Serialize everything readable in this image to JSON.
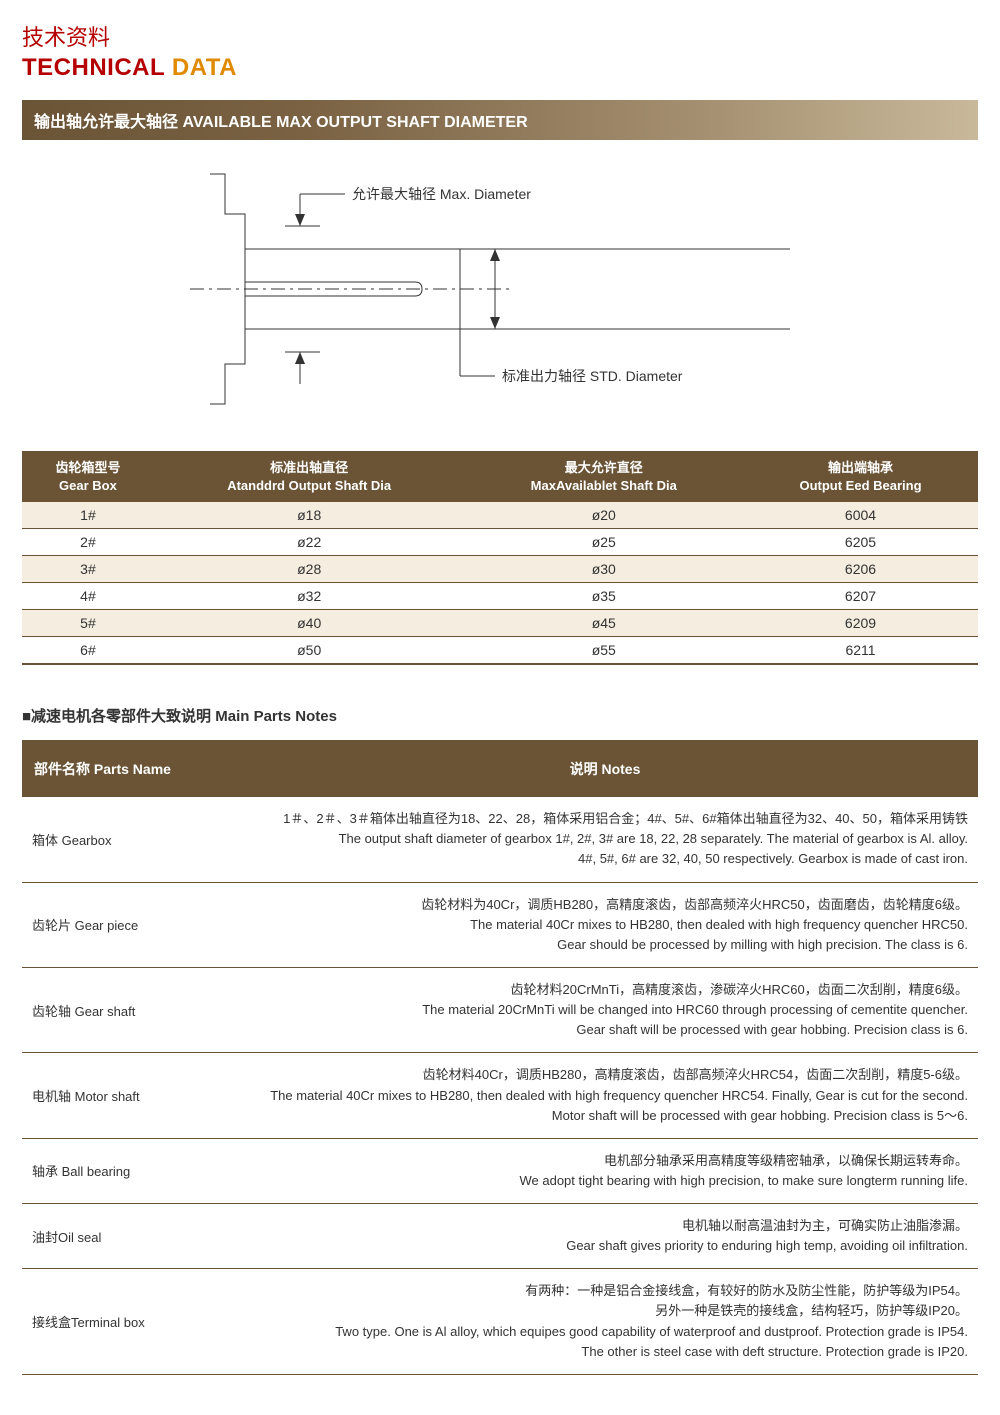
{
  "header": {
    "title_cn": "技术资料",
    "title_en_1": "TECHNICAL",
    "title_en_2": "DATA"
  },
  "section1": {
    "bar": "输出轴允许最大轴径 AVAILABLE MAX OUTPUT SHAFT DIAMETER",
    "diagram": {
      "label_max": "允许最大轴径 Max. Diameter",
      "label_std": "标准出力轴径 STD. Diameter",
      "stroke": "#333333"
    },
    "table": {
      "columns": [
        {
          "cn": "齿轮箱型号",
          "en": "Gear Box"
        },
        {
          "cn": "标准出轴直径",
          "en": "Atanddrd Output Shaft Dia"
        },
        {
          "cn": "最大允许直径",
          "en": "MaxAvailablet Shaft Dia"
        },
        {
          "cn": "输出端轴承",
          "en": "Output Eed Bearing"
        }
      ],
      "rows": [
        [
          "1#",
          "ø18",
          "ø20",
          "6004"
        ],
        [
          "2#",
          "ø22",
          "ø25",
          "6205"
        ],
        [
          "3#",
          "ø28",
          "ø30",
          "6206"
        ],
        [
          "4#",
          "ø32",
          "ø35",
          "6207"
        ],
        [
          "5#",
          "ø40",
          "ø45",
          "6209"
        ],
        [
          "6#",
          "ø50",
          "ø55",
          "6211"
        ]
      ],
      "header_bg": "#6b5436",
      "row_alt_bg": "#f4ede0",
      "border_color": "#6b5436"
    }
  },
  "section2": {
    "heading": "■减速电机各零部件大致说明  Main Parts Notes",
    "columns": {
      "name": "部件名称 Parts Name",
      "notes": "说明 Notes"
    },
    "rows": [
      {
        "name": "箱体 Gearbox",
        "lines": [
          "1＃、2＃、3＃箱体出轴直径为18、22、28，箱体采用铝合金；4#、5#、6#箱体出轴直径为32、40、50，箱体采用铸铁",
          "The output shaft diameter of gearbox 1#, 2#, 3# are 18, 22, 28 separately. The material of gearbox is Al. alloy.",
          "4#, 5#, 6# are 32, 40, 50 respectively. Gearbox is made of cast iron."
        ]
      },
      {
        "name": "齿轮片 Gear piece",
        "lines": [
          "齿轮材料为40Cr，调质HB280，高精度滚齿，齿部高频淬火HRC50，齿面磨齿，齿轮精度6级。",
          "The material 40Cr mixes to HB280, then dealed with high frequency quencher HRC50.",
          "Gear should be processed by milling with high precision. The class is 6."
        ]
      },
      {
        "name": "齿轮轴 Gear shaft",
        "lines": [
          "齿轮材料20CrMnTi，高精度滚齿，渗碳淬火HRC60，齿面二次刮削，精度6级。",
          "The material 20CrMnTi will be changed into HRC60 through processing of cementite quencher.",
          "Gear shaft will be processed with gear hobbing. Precision class is 6."
        ]
      },
      {
        "name": "电机轴 Motor shaft",
        "lines": [
          "齿轮材料40Cr，调质HB280，高精度滚齿，齿部高频淬火HRC54，齿面二次刮削，精度5-6级。",
          "The material 40Cr mixes to HB280, then dealed with high frequency quencher HRC54. Finally, Gear is cut for the second.",
          "Motor shaft will be processed with gear hobbing. Precision class is 5～6."
        ]
      },
      {
        "name": "轴承 Ball bearing",
        "lines": [
          "电机部分轴承采用高精度等级精密轴承，以确保长期运转寿命。",
          "We adopt tight bearing with high precision, to make sure longterm running life."
        ]
      },
      {
        "name": "油封Oil seal",
        "lines": [
          "电机轴以耐高温油封为主，可确实防止油脂渗漏。",
          "Gear shaft gives priority to enduring high temp, avoiding oil infiltration."
        ]
      },
      {
        "name": "接线盒Terminal box",
        "lines": [
          "有两种：一种是铝合金接线盒，有较好的防水及防尘性能，防护等级为IP54。",
          "另外一种是铁壳的接线盒，结构轻巧，防护等级IP20。",
          "Two type. One is Al alloy, which equipes good capability of waterproof and dustproof. Protection grade is IP54.",
          "The other is steel case with deft structure.  Protection grade is IP20."
        ]
      }
    ]
  }
}
